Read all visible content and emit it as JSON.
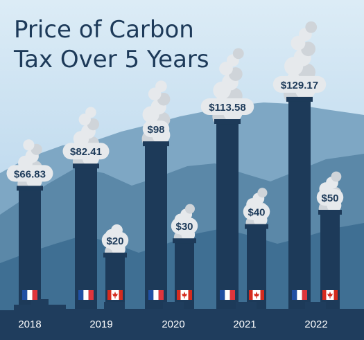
{
  "colors": {
    "sky_top": "#dcecf6",
    "sky_bottom": "#a9cce8",
    "mountain_far": "#7ea7c4",
    "mountain_mid": "#5b88a8",
    "mountain_near": "#3f6f93",
    "chimney": "#1d3a59",
    "ground": "#1f3d5d",
    "smoke": "#e6e9ec",
    "smoke_shadow": "#cfd4d9",
    "title": "#1d3a59",
    "label": "#1d3a59",
    "year": "#ffffff",
    "france_blue": "#1f4fa3",
    "france_red": "#e0353c",
    "canada_red": "#d52b1e"
  },
  "chart_data": {
    "type": "bar",
    "title": "Price of Carbon Tax Over 5 Years",
    "title_lines": [
      "Price of Carbon",
      "Tax Over 5 Years"
    ],
    "categories": [
      "2018",
      "2019",
      "2020",
      "2021",
      "2022"
    ],
    "series": [
      {
        "country": "France",
        "flag": "france-flag-icon",
        "values": [
          66.83,
          82.41,
          98,
          113.58,
          129.17
        ],
        "labels": [
          "$66.83",
          "$82.41",
          "$98",
          "$113.58",
          "$129.17"
        ]
      },
      {
        "country": "Canada",
        "flag": "canada-flag-icon",
        "values": [
          null,
          20,
          30,
          40,
          50
        ],
        "labels": [
          "",
          "$20",
          "$30",
          "$40",
          "$50"
        ]
      }
    ]
  }
}
